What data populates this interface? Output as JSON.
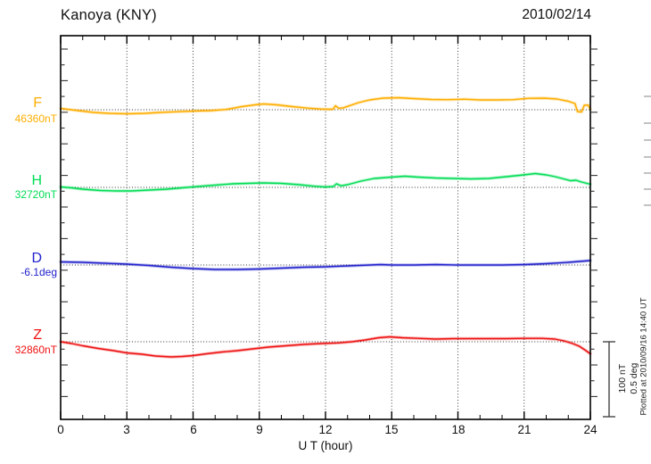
{
  "header": {
    "title": "Kanoya (KNY)",
    "date": "2010/02/14"
  },
  "x_axis": {
    "label": "U T (hour)",
    "ticks": [
      "0",
      "3",
      "6",
      "9",
      "12",
      "15",
      "18",
      "21",
      "24"
    ]
  },
  "scale_bar": {
    "line1": "100 nT",
    "line2": "0.5 deg"
  },
  "footer_note": "Plotted at 2010/09/16 14:40 UT",
  "chart_data": {
    "type": "line",
    "station": "Kanoya (KNY)",
    "date": "2010/02/14",
    "xlabel": "U T (hour)",
    "x_range": [
      0,
      24
    ],
    "x_ticks": [
      0,
      3,
      6,
      9,
      12,
      15,
      18,
      21,
      24
    ],
    "grid": {
      "vertical_dotted_every_hours": 3,
      "horizontal_dotted_baseline_per_series": true
    },
    "scale_reference": {
      "nT": 100,
      "deg": 0.5
    },
    "points_are_offsets_from_base_value": true,
    "series": [
      {
        "id": "F",
        "label": "F",
        "base_label": "46360nT",
        "base_value": 46360,
        "unit": "nT",
        "color": "#FFAE00",
        "points": [
          [
            0,
            1.8
          ],
          [
            0.3,
            0.6
          ],
          [
            0.8,
            -1.2
          ],
          [
            1.5,
            -3.6
          ],
          [
            2.2,
            -4.8
          ],
          [
            3,
            -5.4
          ],
          [
            3.8,
            -4.8
          ],
          [
            4.5,
            -3.6
          ],
          [
            5.2,
            -2.7
          ],
          [
            6,
            -1.8
          ],
          [
            6.8,
            -1.2
          ],
          [
            7.5,
            0.3
          ],
          [
            8.2,
            4.2
          ],
          [
            8.8,
            6.5
          ],
          [
            9.2,
            7.7
          ],
          [
            9.8,
            6.5
          ],
          [
            10.5,
            4.2
          ],
          [
            11.2,
            2.1
          ],
          [
            11.8,
            0.9
          ],
          [
            12.2,
            0.6
          ],
          [
            12.35,
            1.0
          ],
          [
            12.45,
            5.2
          ],
          [
            12.6,
            2.0
          ],
          [
            12.8,
            2.5
          ],
          [
            13,
            4.5
          ],
          [
            13.5,
            9.5
          ],
          [
            14,
            13.1
          ],
          [
            14.6,
            15.5
          ],
          [
            15.3,
            16.1
          ],
          [
            16,
            14.9
          ],
          [
            16.8,
            13.7
          ],
          [
            17.5,
            13.4
          ],
          [
            18.3,
            14.0
          ],
          [
            19,
            13.1
          ],
          [
            19.8,
            13.1
          ],
          [
            20.5,
            13.4
          ],
          [
            21.2,
            15.2
          ],
          [
            21.9,
            15.5
          ],
          [
            22.5,
            14.3
          ],
          [
            23,
            11.3
          ],
          [
            23.3,
            8.3
          ],
          [
            23.42,
            -2.4
          ],
          [
            23.6,
            -3.0
          ],
          [
            23.72,
            6.0
          ],
          [
            23.9,
            6.3
          ],
          [
            24,
            0.6
          ]
        ]
      },
      {
        "id": "H",
        "label": "H",
        "base_label": "32720nT",
        "base_value": 32720,
        "unit": "nT",
        "color": "#00DD55",
        "points": [
          [
            0,
            0.6
          ],
          [
            0.5,
            -0.6
          ],
          [
            1,
            -2.4
          ],
          [
            1.8,
            -4.2
          ],
          [
            2.5,
            -4.8
          ],
          [
            3.2,
            -4.8
          ],
          [
            4,
            -3.6
          ],
          [
            4.8,
            -2.4
          ],
          [
            5.5,
            -0.6
          ],
          [
            6.2,
            1.2
          ],
          [
            7,
            3.0
          ],
          [
            7.8,
            4.8
          ],
          [
            8.5,
            5.4
          ],
          [
            9.2,
            6.0
          ],
          [
            10,
            5.4
          ],
          [
            10.8,
            3.6
          ],
          [
            11.5,
            1.5
          ],
          [
            12,
            0.6
          ],
          [
            12.35,
            1.2
          ],
          [
            12.5,
            4.8
          ],
          [
            12.7,
            2.1
          ],
          [
            13,
            3.6
          ],
          [
            13.6,
            8.3
          ],
          [
            14.2,
            11.9
          ],
          [
            15,
            13.7
          ],
          [
            15.6,
            14.9
          ],
          [
            16.2,
            13.7
          ],
          [
            17,
            12.5
          ],
          [
            17.8,
            11.9
          ],
          [
            18.6,
            11.3
          ],
          [
            19.4,
            11.9
          ],
          [
            20,
            13.7
          ],
          [
            20.8,
            16.1
          ],
          [
            21.5,
            18.5
          ],
          [
            22,
            16.7
          ],
          [
            22.4,
            14.3
          ],
          [
            22.8,
            11.3
          ],
          [
            23.1,
            8.9
          ],
          [
            23.35,
            9.5
          ],
          [
            23.6,
            7.1
          ],
          [
            24,
            4.2
          ]
        ]
      },
      {
        "id": "D",
        "label": "D",
        "base_label": "-6.1deg",
        "base_value": -6.1,
        "unit": "deg",
        "color": "#2222CC",
        "points": [
          [
            0,
            0.021
          ],
          [
            1,
            0.018
          ],
          [
            2,
            0.012
          ],
          [
            3,
            0.006
          ],
          [
            4,
            -0.003
          ],
          [
            5,
            -0.015
          ],
          [
            6,
            -0.024
          ],
          [
            7,
            -0.03
          ],
          [
            8,
            -0.03
          ],
          [
            9,
            -0.027
          ],
          [
            10,
            -0.021
          ],
          [
            11,
            -0.015
          ],
          [
            12,
            -0.012
          ],
          [
            13,
            -0.006
          ],
          [
            14,
            0
          ],
          [
            14.5,
            0.003
          ],
          [
            15,
            0
          ],
          [
            16,
            0
          ],
          [
            17,
            0.003
          ],
          [
            18,
            0
          ],
          [
            19,
            0
          ],
          [
            20,
            0
          ],
          [
            21,
            0.003
          ],
          [
            22,
            0.009
          ],
          [
            23,
            0.018
          ],
          [
            23.5,
            0.024
          ],
          [
            24,
            0.03
          ]
        ]
      },
      {
        "id": "Z",
        "label": "Z",
        "base_label": "32860nT",
        "base_value": 32860,
        "unit": "nT",
        "color": "#EE1111",
        "points": [
          [
            0,
            0
          ],
          [
            0.5,
            -2.4
          ],
          [
            1,
            -5.4
          ],
          [
            1.7,
            -8.9
          ],
          [
            2.4,
            -11.9
          ],
          [
            3,
            -14.9
          ],
          [
            3.7,
            -16.7
          ],
          [
            4.3,
            -19.0
          ],
          [
            5,
            -20.2
          ],
          [
            5.5,
            -19.6
          ],
          [
            6,
            -18.5
          ],
          [
            6.6,
            -16.1
          ],
          [
            7.3,
            -13.7
          ],
          [
            8,
            -11.9
          ],
          [
            8.7,
            -9.5
          ],
          [
            9.4,
            -7.1
          ],
          [
            10.2,
            -5.4
          ],
          [
            11,
            -3.6
          ],
          [
            11.8,
            -2.4
          ],
          [
            12.6,
            -1.5
          ],
          [
            13.2,
            0
          ],
          [
            13.8,
            2.4
          ],
          [
            14.4,
            5.4
          ],
          [
            14.9,
            6.5
          ],
          [
            15.5,
            5.4
          ],
          [
            16.2,
            4.5
          ],
          [
            17,
            3.6
          ],
          [
            17.8,
            4.2
          ],
          [
            18.6,
            4.2
          ],
          [
            19.4,
            4.2
          ],
          [
            20.2,
            4.2
          ],
          [
            21,
            4.5
          ],
          [
            21.8,
            4.5
          ],
          [
            22.4,
            3.6
          ],
          [
            22.8,
            1.2
          ],
          [
            23.2,
            -2.4
          ],
          [
            23.5,
            -6.0
          ],
          [
            23.8,
            -11.9
          ],
          [
            24,
            -16.1
          ]
        ]
      }
    ]
  }
}
